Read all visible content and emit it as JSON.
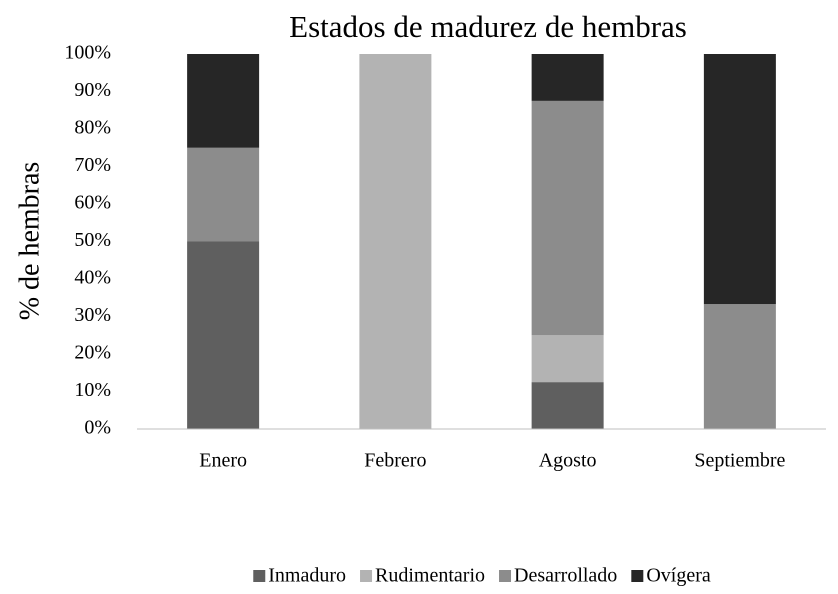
{
  "chart_data": {
    "type": "stacked_bar",
    "title": "Estados de madurez de hembras",
    "y_label": "% de hembras",
    "categories": [
      "Enero",
      "Febrero",
      "Agosto",
      "Septiembre"
    ],
    "series": [
      {
        "name": "Inmaduro",
        "color": "#5f5f5f",
        "values": [
          50,
          0,
          12.5,
          0
        ]
      },
      {
        "name": "Rudimentario",
        "color": "#b3b3b3",
        "values": [
          0,
          100,
          12.5,
          0
        ]
      },
      {
        "name": "Desarrollado",
        "color": "#8c8c8c",
        "values": [
          25,
          0,
          62.5,
          33.3
        ]
      },
      {
        "name": "Ovígera",
        "color": "#262626",
        "values": [
          25,
          0,
          12.5,
          66.7
        ]
      }
    ],
    "ylim": [
      0,
      100
    ],
    "yticks": [
      {
        "value": 0,
        "label": "0%"
      },
      {
        "value": 10,
        "label": "10%"
      },
      {
        "value": 20,
        "label": "20%"
      },
      {
        "value": 30,
        "label": "30%"
      },
      {
        "value": 40,
        "label": "40%"
      },
      {
        "value": 50,
        "label": "50%"
      },
      {
        "value": 60,
        "label": "60%"
      },
      {
        "value": 70,
        "label": "70%"
      },
      {
        "value": 80,
        "label": "80%"
      },
      {
        "value": 90,
        "label": "90%"
      },
      {
        "value": 100,
        "label": "100%"
      }
    ],
    "grid": false,
    "legend": "bottom"
  }
}
